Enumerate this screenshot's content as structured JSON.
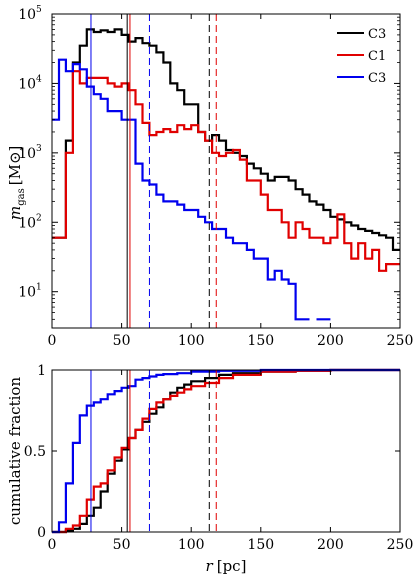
{
  "chart_data": [
    {
      "type": "line",
      "step": true,
      "ylabel_symbol": "m",
      "ylabel_subscript": "gas",
      "ylabel_unit": "[M⊙]",
      "xlim": [
        0,
        250
      ],
      "ylim": [
        3,
        100000
      ],
      "yscale": "log",
      "xticks": [
        "0",
        "50",
        "100",
        "150",
        "200",
        "250"
      ],
      "yticks": [
        {
          "value": 10,
          "base": "10",
          "exp": "1"
        },
        {
          "value": 100,
          "base": "10",
          "exp": "2"
        },
        {
          "value": 1000,
          "base": "10",
          "exp": "3"
        },
        {
          "value": 10000,
          "base": "10",
          "exp": "4"
        },
        {
          "value": 100000,
          "base": "10",
          "exp": "5"
        }
      ],
      "legend_position": "top-right",
      "series": [
        {
          "name": "C3",
          "color": "#000000",
          "bin_width": 5,
          "x_start": 0,
          "values": [
            60,
            60,
            1500,
            20000,
            35000,
            60000,
            55000,
            58000,
            55000,
            60000,
            50000,
            40000,
            45000,
            38000,
            35000,
            28000,
            20000,
            10000,
            8000,
            5000,
            5000,
            2000,
            1500,
            1800,
            1500,
            1100,
            1000,
            900,
            700,
            600,
            500,
            400,
            450,
            450,
            400,
            300,
            250,
            200,
            180,
            150,
            120,
            110,
            100,
            90,
            80,
            75,
            70,
            65,
            60,
            40
          ]
        },
        {
          "name": "C1",
          "color": "#e00000",
          "bin_width": 5,
          "x_start": 0,
          "values": [
            60,
            60,
            1000,
            15000,
            10000,
            12000,
            12000,
            12000,
            10000,
            9000,
            10000,
            8000,
            5000,
            2700,
            1800,
            2000,
            2200,
            2000,
            2500,
            2200,
            2500,
            2000,
            1500,
            1000,
            900,
            1000,
            1100,
            800,
            400,
            400,
            250,
            150,
            150,
            100,
            60,
            100,
            80,
            60,
            60,
            50,
            60,
            130,
            50,
            30,
            50,
            30,
            40,
            20,
            25,
            25
          ]
        },
        {
          "name": "C3",
          "color": "#0000ee",
          "bin_width": 5,
          "x_start": 0,
          "values": [
            3000,
            22000,
            15000,
            19000,
            16000,
            9000,
            7000,
            6000,
            4000,
            4000,
            3000,
            3000,
            700,
            400,
            350,
            250,
            200,
            200,
            180,
            150,
            150,
            120,
            100,
            80,
            80,
            60,
            50,
            50,
            40,
            30,
            30,
            15,
            20,
            15,
            13,
            4,
            4,
            null,
            4,
            4
          ]
        }
      ],
      "vertical_lines": [
        {
          "x": 54,
          "color": "#000000",
          "style": "solid"
        },
        {
          "x": 56,
          "color": "#e00000",
          "style": "solid"
        },
        {
          "x": 28,
          "color": "#0000ee",
          "style": "solid"
        },
        {
          "x": 113,
          "color": "#000000",
          "style": "dashed"
        },
        {
          "x": 118,
          "color": "#e00000",
          "style": "dashed"
        },
        {
          "x": 70,
          "color": "#0000ee",
          "style": "dashed"
        }
      ]
    },
    {
      "type": "line",
      "step": true,
      "xlabel_symbol": "r",
      "xlabel_unit": "[pc]",
      "ylabel": "cumulative fraction",
      "xlim": [
        0,
        250
      ],
      "ylim": [
        0,
        1
      ],
      "xticks": [
        "0",
        "50",
        "100",
        "150",
        "200",
        "250"
      ],
      "yticks": [
        {
          "value": 0,
          "label": "0"
        },
        {
          "value": 0.5,
          "label": "0.5"
        },
        {
          "value": 1,
          "label": "1"
        }
      ],
      "series": [
        {
          "name": "C3",
          "color": "#000000",
          "x": [
            0,
            10,
            15,
            20,
            25,
            30,
            35,
            40,
            45,
            50,
            55,
            60,
            65,
            70,
            75,
            80,
            85,
            90,
            95,
            100,
            110,
            120,
            130,
            150,
            175,
            200,
            250
          ],
          "y": [
            0,
            0.01,
            0.02,
            0.05,
            0.1,
            0.15,
            0.25,
            0.36,
            0.44,
            0.51,
            0.58,
            0.63,
            0.68,
            0.73,
            0.77,
            0.82,
            0.86,
            0.89,
            0.91,
            0.93,
            0.95,
            0.97,
            0.98,
            0.99,
            0.995,
            1.0,
            1.0
          ]
        },
        {
          "name": "C1",
          "color": "#e00000",
          "x": [
            0,
            10,
            15,
            20,
            25,
            30,
            35,
            40,
            45,
            50,
            55,
            60,
            65,
            70,
            75,
            80,
            85,
            90,
            95,
            100,
            110,
            120,
            130,
            150,
            175,
            200,
            250
          ],
          "y": [
            0,
            0.02,
            0.04,
            0.1,
            0.2,
            0.28,
            0.3,
            0.38,
            0.46,
            0.52,
            0.58,
            0.63,
            0.7,
            0.76,
            0.8,
            0.82,
            0.84,
            0.86,
            0.88,
            0.9,
            0.92,
            0.95,
            0.97,
            0.99,
            0.995,
            1.0,
            1.0
          ]
        },
        {
          "name": "C3",
          "color": "#0000ee",
          "x": [
            0,
            5,
            10,
            15,
            20,
            25,
            30,
            35,
            40,
            45,
            50,
            55,
            60,
            65,
            70,
            75,
            80,
            90,
            100,
            120,
            150,
            200,
            250
          ],
          "y": [
            0,
            0.06,
            0.3,
            0.55,
            0.72,
            0.78,
            0.8,
            0.82,
            0.85,
            0.87,
            0.89,
            0.9,
            0.94,
            0.95,
            0.96,
            0.97,
            0.975,
            0.98,
            0.99,
            0.995,
            1.0,
            1.0,
            1.0
          ]
        }
      ],
      "vertical_lines": [
        {
          "x": 54,
          "color": "#000000",
          "style": "solid"
        },
        {
          "x": 56,
          "color": "#e00000",
          "style": "solid"
        },
        {
          "x": 28,
          "color": "#0000ee",
          "style": "solid"
        },
        {
          "x": 113,
          "color": "#000000",
          "style": "dashed"
        },
        {
          "x": 118,
          "color": "#e00000",
          "style": "dashed"
        },
        {
          "x": 70,
          "color": "#0000ee",
          "style": "dashed"
        }
      ]
    }
  ]
}
